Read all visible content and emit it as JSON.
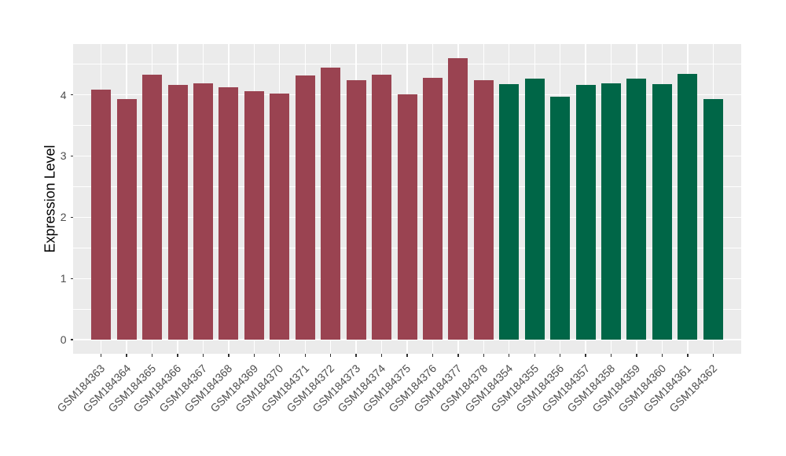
{
  "figure": {
    "background_color": "#FFFFFF"
  },
  "chart_data": {
    "type": "bar",
    "title": "",
    "xlabel": "",
    "ylabel": "Expression Level",
    "legend_position": "none",
    "grid": "on",
    "panel_bg": "#EBEBEB",
    "grid_color": "#FFFFFF",
    "tick_color": "#333333",
    "axis_text_color": "#4D4D4D",
    "ylim": [
      0,
      4.6
    ],
    "ytick_values": [
      0,
      1,
      2,
      3,
      4
    ],
    "ytick_labels": [
      "0",
      "1",
      "2",
      "3",
      "4"
    ],
    "y_minor_values": [
      0.5,
      1.5,
      2.5,
      3.5,
      4.5
    ],
    "group_colors": {
      "maroon": "#9A4351",
      "green": "#006647"
    },
    "categories": [
      "GSM184363",
      "GSM184364",
      "GSM184365",
      "GSM184366",
      "GSM184367",
      "GSM184368",
      "GSM184369",
      "GSM184370",
      "GSM184371",
      "GSM184372",
      "GSM184373",
      "GSM184374",
      "GSM184375",
      "GSM184376",
      "GSM184377",
      "GSM184378",
      "GSM184354",
      "GSM184355",
      "GSM184356",
      "GSM184357",
      "GSM184358",
      "GSM184359",
      "GSM184360",
      "GSM184361",
      "GSM184362"
    ],
    "values": [
      4.08,
      3.93,
      4.33,
      4.16,
      4.19,
      4.13,
      4.06,
      4.02,
      4.31,
      4.45,
      4.24,
      4.33,
      4.01,
      4.28,
      4.6,
      4.24,
      4.18,
      4.27,
      3.97,
      4.16,
      4.19,
      4.27,
      4.17,
      4.34,
      3.93
    ],
    "bar_groups": [
      "maroon",
      "maroon",
      "maroon",
      "maroon",
      "maroon",
      "maroon",
      "maroon",
      "maroon",
      "maroon",
      "maroon",
      "maroon",
      "maroon",
      "maroon",
      "maroon",
      "maroon",
      "maroon",
      "green",
      "green",
      "green",
      "green",
      "green",
      "green",
      "green",
      "green",
      "green"
    ]
  }
}
